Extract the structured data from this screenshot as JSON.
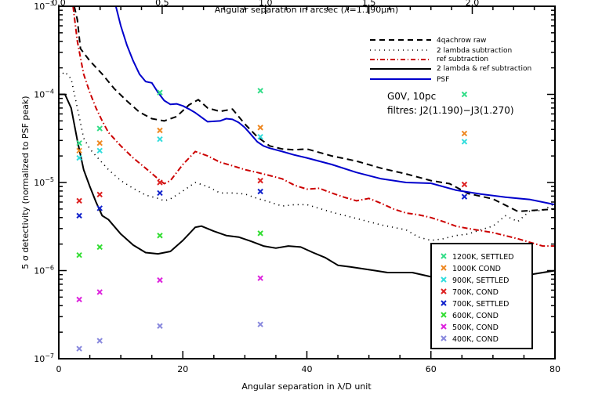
{
  "chart_data": {
    "type": "line",
    "xlabel": "Angular separation in λ/D unit",
    "x2label": "Angular separation in arcsec (λ=1.190μm)",
    "ylabel": "5 σ detectivity (normalized to PSF peak)",
    "xlim": [
      0,
      80
    ],
    "x2lim": [
      0.0,
      2.4
    ],
    "ylim": [
      1e-07,
      0.001
    ],
    "yscale": "log",
    "x_ticks": [
      {
        "v": 0,
        "label": "0"
      },
      {
        "v": 20,
        "label": "20"
      },
      {
        "v": 40,
        "label": "40"
      },
      {
        "v": 60,
        "label": "60"
      },
      {
        "v": 80,
        "label": "80"
      }
    ],
    "x2_ticks": [
      {
        "v": 0.0,
        "label": "0.0"
      },
      {
        "v": 0.5,
        "label": "0.5"
      },
      {
        "v": 1.0,
        "label": "1.0"
      },
      {
        "v": 1.5,
        "label": "1.5"
      },
      {
        "v": 2.0,
        "label": "2.0"
      }
    ],
    "y_ticks": [
      {
        "exp": -3,
        "label": "10",
        "sup": "−3"
      },
      {
        "exp": -4,
        "label": "10",
        "sup": "−4"
      },
      {
        "exp": -5,
        "label": "10",
        "sup": "−5"
      },
      {
        "exp": -6,
        "label": "10",
        "sup": "−6"
      },
      {
        "exp": -7,
        "label": "10",
        "sup": "−7"
      }
    ],
    "annotations": [
      "G0V, 10pc",
      "filtres: J2(1.190)−J3(1.270)"
    ],
    "legend_lines_position": "top-right",
    "legend_markers_position": "bottom-right",
    "series": [
      {
        "name": "4qachrow raw",
        "style": "dashed",
        "color": "#000000",
        "x": [
          2.5,
          3.0,
          3.5,
          5,
          7,
          9,
          11,
          13,
          15,
          17,
          19,
          21,
          22.5,
          24,
          26,
          28,
          30,
          32,
          34,
          36,
          38,
          40,
          44,
          48,
          52,
          56,
          60,
          63,
          66,
          70,
          74,
          78,
          80
        ],
        "y": [
          0.001,
          0.0007,
          0.00033,
          0.00024,
          0.00017,
          0.000115,
          8.4e-05,
          6.3e-05,
          5.3e-05,
          5e-05,
          5.6e-05,
          7.6e-05,
          8.7e-05,
          7e-05,
          6.4e-05,
          6.8e-05,
          4.6e-05,
          3.3e-05,
          2.6e-05,
          2.4e-05,
          2.35e-05,
          2.4e-05,
          2e-05,
          1.75e-05,
          1.45e-05,
          1.25e-05,
          1.05e-05,
          9.7e-06,
          7.5e-06,
          6.5e-06,
          4.7e-06,
          4.9e-06,
          5e-06
        ]
      },
      {
        "name": "2 lambda subtraction",
        "style": "dotted",
        "color": "#000000",
        "x": [
          0,
          1,
          2,
          3,
          4,
          5,
          6,
          8,
          10,
          12,
          14,
          16,
          17,
          18,
          20,
          22,
          24,
          26,
          28,
          30,
          32,
          34,
          36,
          38,
          40,
          44,
          48,
          52,
          56,
          58,
          60,
          62,
          64,
          66,
          68,
          70,
          72,
          74,
          76,
          78,
          80
        ],
        "y": [
          0.00016,
          0.00018,
          0.00015,
          7e-05,
          3.2e-05,
          2.4e-05,
          2e-05,
          1.4e-05,
          1.05e-05,
          8.6e-06,
          7.2e-06,
          6.6e-06,
          6.2e-06,
          6.5e-06,
          8e-06,
          1e-05,
          9e-06,
          7.6e-06,
          7.6e-06,
          7.4e-06,
          6.6e-06,
          6e-06,
          5.4e-06,
          5.6e-06,
          5.6e-06,
          4.6e-06,
          3.9e-06,
          3.3e-06,
          2.9e-06,
          2.4e-06,
          2.2e-06,
          2.3e-06,
          2.5e-06,
          2.6e-06,
          2.9e-06,
          3.2e-06,
          4.2e-06,
          3.6e-06,
          4.8e-06,
          4.8e-06,
          5.8e-06
        ]
      },
      {
        "name": "ref subtraction",
        "style": "dashdot",
        "color": "#cc0000",
        "x": [
          2.3,
          3.0,
          4,
          5,
          6,
          7,
          8,
          10,
          12,
          14,
          16,
          17,
          18,
          20,
          22,
          24,
          26,
          28,
          30,
          32,
          34,
          36,
          38,
          40,
          42,
          44,
          46,
          48,
          50,
          52,
          54,
          56,
          58,
          60,
          62,
          64,
          66,
          70,
          74,
          78,
          80
        ],
        "y": [
          0.001,
          0.0004,
          0.00017,
          0.000105,
          7e-05,
          5e-05,
          3.7e-05,
          2.6e-05,
          1.9e-05,
          1.45e-05,
          1.1e-05,
          9.7e-06,
          1.05e-05,
          1.6e-05,
          2.25e-05,
          2e-05,
          1.7e-05,
          1.55e-05,
          1.4e-05,
          1.3e-05,
          1.2e-05,
          1.1e-05,
          9.3e-06,
          8.4e-06,
          8.6e-06,
          7.6e-06,
          6.8e-06,
          6.2e-06,
          6.6e-06,
          5.8e-06,
          5e-06,
          4.5e-06,
          4.3e-06,
          4e-06,
          3.6e-06,
          3.2e-06,
          3e-06,
          2.7e-06,
          2.3e-06,
          1.9e-06,
          1.9e-06
        ]
      },
      {
        "name": "2 lambda & ref subtraction",
        "style": "solid",
        "color": "#000000",
        "x": [
          0,
          1,
          2,
          3,
          4,
          5,
          6,
          7,
          8,
          10,
          12,
          14,
          16,
          18,
          20,
          22,
          23,
          25,
          27,
          29,
          31,
          33,
          35,
          37,
          39,
          41,
          43,
          45,
          47,
          49,
          51,
          53,
          55,
          57,
          60,
          64,
          68,
          72,
          76,
          80
        ],
        "y": [
          0.0001,
          0.0001,
          7e-05,
          3e-05,
          1.4e-05,
          9e-06,
          6e-06,
          4.2e-06,
          3.8e-06,
          2.6e-06,
          1.95e-06,
          1.6e-06,
          1.55e-06,
          1.65e-06,
          2.2e-06,
          3.1e-06,
          3.2e-06,
          2.8e-06,
          2.5e-06,
          2.4e-06,
          2.15e-06,
          1.9e-06,
          1.8e-06,
          1.9e-06,
          1.85e-06,
          1.6e-06,
          1.4e-06,
          1.15e-06,
          1.1e-06,
          1.05e-06,
          1e-06,
          9.5e-07,
          9.5e-07,
          9.5e-07,
          8.5e-07,
          9e-07,
          8.5e-07,
          8e-07,
          9e-07,
          1e-06
        ]
      },
      {
        "name": "PSF",
        "style": "solid",
        "color": "#0000cc",
        "x": [
          9.2,
          10,
          11,
          12,
          13,
          14,
          15,
          16,
          17,
          18,
          19,
          20,
          21,
          22,
          24,
          26,
          27,
          28,
          29,
          30,
          31,
          32,
          33,
          34,
          36,
          38,
          40,
          44,
          48,
          52,
          56,
          60,
          64,
          68,
          72,
          76,
          79,
          80
        ],
        "y": [
          0.001,
          0.0006,
          0.00036,
          0.00024,
          0.00017,
          0.00014,
          0.000135,
          0.000105,
          8.5e-05,
          7.7e-05,
          7.8e-05,
          7.4e-05,
          6.8e-05,
          6.2e-05,
          4.9e-05,
          5e-05,
          5.3e-05,
          5.2e-05,
          4.8e-05,
          4.2e-05,
          3.5e-05,
          2.9e-05,
          2.6e-05,
          2.45e-05,
          2.25e-05,
          2.05e-05,
          1.9e-05,
          1.6e-05,
          1.3e-05,
          1.1e-05,
          1e-05,
          9.8e-06,
          8.2e-06,
          7.4e-06,
          6.8e-06,
          6.4e-06,
          5.8e-06,
          5.6e-06
        ]
      }
    ],
    "marker_series": [
      {
        "name": "1200K, SETTLED",
        "color": "#33dd88",
        "x": [
          3.3,
          6.6,
          16.3,
          32.5,
          65.4
        ],
        "y": [
          2.8e-05,
          4.1e-05,
          0.000105,
          0.00011,
          0.0001
        ]
      },
      {
        "name": "1000K COND",
        "color": "#ee8822",
        "x": [
          3.3,
          6.6,
          16.3,
          32.5,
          65.4
        ],
        "y": [
          2.3e-05,
          2.8e-05,
          3.9e-05,
          4.2e-05,
          3.6e-05
        ]
      },
      {
        "name": "900K, SETTLED",
        "color": "#33dddd",
        "x": [
          3.3,
          6.6,
          16.3,
          32.5,
          65.4
        ],
        "y": [
          1.9e-05,
          2.3e-05,
          3.1e-05,
          3.3e-05,
          2.9e-05
        ]
      },
      {
        "name": "700K, COND",
        "color": "#dd2222",
        "x": [
          3.3,
          6.6,
          16.3,
          32.5,
          65.4
        ],
        "y": [
          6.2e-06,
          7.3e-06,
          1e-05,
          1.05e-05,
          9.5e-06
        ]
      },
      {
        "name": "700K, SETTLED",
        "color": "#1122cc",
        "x": [
          3.3,
          6.6,
          16.3,
          32.5,
          65.4
        ],
        "y": [
          4.2e-06,
          5.1e-06,
          7.6e-06,
          7.9e-06,
          6.9e-06
        ]
      },
      {
        "name": "600K, COND",
        "color": "#33dd33",
        "x": [
          3.3,
          6.6,
          16.3,
          32.5
        ],
        "y": [
          1.5e-06,
          1.85e-06,
          2.5e-06,
          2.65e-06
        ]
      },
      {
        "name": "500K, COND",
        "color": "#dd22dd",
        "x": [
          3.3,
          6.6,
          16.3,
          32.5
        ],
        "y": [
          4.7e-07,
          5.7e-07,
          7.8e-07,
          8.2e-07
        ]
      },
      {
        "name": "400K, COND",
        "color": "#8888dd",
        "x": [
          3.3,
          6.6,
          16.3,
          32.5
        ],
        "y": [
          1.3e-07,
          1.6e-07,
          2.35e-07,
          2.45e-07
        ]
      }
    ]
  }
}
